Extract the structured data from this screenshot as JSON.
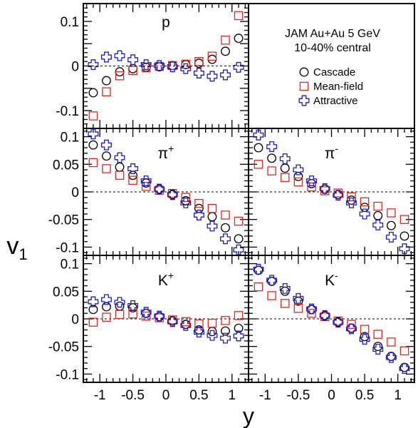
{
  "chart_data": [
    {
      "type": "scatter",
      "panel": "p",
      "label": "p",
      "label_sup": "",
      "xlabel": "y",
      "ylabel": "v1",
      "xlim": [
        -1.25,
        1.25
      ],
      "ylim": [
        -0.14,
        0.14
      ],
      "yticks": [
        "0.1",
        "0",
        "-0.1"
      ],
      "ytick_values": [
        0.1,
        0,
        -0.1
      ],
      "series": [
        {
          "name": "Cascade",
          "x": [
            -1.1,
            -0.9,
            -0.7,
            -0.5,
            -0.3,
            -0.1,
            0.1,
            0.3,
            0.5,
            0.7,
            0.9,
            1.1
          ],
          "values": [
            -0.06,
            -0.033,
            -0.013,
            -0.006,
            -0.003,
            -0.002,
            0.001,
            0.003,
            0.006,
            0.015,
            0.033,
            0.062
          ]
        },
        {
          "name": "Mean-field",
          "x": [
            -1.1,
            -0.9,
            -0.7,
            -0.5,
            -0.3,
            -0.1,
            0.1,
            0.3,
            0.5,
            0.7,
            0.9,
            1.1
          ],
          "values": [
            -0.112,
            -0.058,
            -0.022,
            -0.01,
            -0.004,
            -0.001,
            0.001,
            0.004,
            0.01,
            0.022,
            0.058,
            0.113
          ]
        },
        {
          "name": "Attractive",
          "x": [
            -1.1,
            -0.9,
            -0.7,
            -0.5,
            -0.3,
            -0.1,
            0.1,
            0.3,
            0.5,
            0.7,
            0.9,
            1.1
          ],
          "values": [
            0.003,
            0.02,
            0.023,
            0.014,
            0.003,
            0.001,
            -0.002,
            -0.006,
            -0.016,
            -0.023,
            -0.02,
            -0.003
          ]
        }
      ]
    },
    {
      "type": "scatter",
      "panel": "legend",
      "label": "",
      "label_sup": "",
      "title": "JAM Au+Au 5 GeV",
      "subtitle": "10-40% central",
      "legend": "top-right panel",
      "series_names": [
        "Cascade",
        "Mean-field",
        "Attractive"
      ]
    },
    {
      "type": "scatter",
      "panel": "pi+",
      "label": "π",
      "label_sup": "+",
      "xlabel": "y",
      "ylabel": "v1",
      "xlim": [
        -1.25,
        1.25
      ],
      "ylim": [
        -0.115,
        0.115
      ],
      "yticks": [
        "0.1",
        "0.05",
        "0",
        "-0.05",
        "-0.1"
      ],
      "ytick_values": [
        0.1,
        0.05,
        0,
        -0.05,
        -0.1
      ],
      "series": [
        {
          "name": "Cascade",
          "x": [
            -1.1,
            -0.9,
            -0.7,
            -0.5,
            -0.3,
            -0.1,
            0.1,
            0.3,
            0.5,
            0.7,
            0.9,
            1.1
          ],
          "values": [
            0.085,
            0.065,
            0.045,
            0.03,
            0.016,
            0.005,
            -0.005,
            -0.016,
            -0.03,
            -0.045,
            -0.065,
            -0.085
          ]
        },
        {
          "name": "Mean-field",
          "x": [
            -1.1,
            -0.9,
            -0.7,
            -0.5,
            -0.3,
            -0.1,
            0.1,
            0.3,
            0.5,
            0.7,
            0.9,
            1.1
          ],
          "values": [
            0.053,
            0.042,
            0.03,
            0.021,
            0.01,
            0.003,
            -0.003,
            -0.01,
            -0.021,
            -0.03,
            -0.042,
            -0.053
          ]
        },
        {
          "name": "Attractive",
          "x": [
            -1.1,
            -0.9,
            -0.7,
            -0.5,
            -0.3,
            -0.1,
            0.1,
            0.3,
            0.5,
            0.7,
            0.9,
            1.1
          ],
          "values": [
            0.105,
            0.085,
            0.062,
            0.042,
            0.02,
            0.005,
            -0.005,
            -0.02,
            -0.042,
            -0.062,
            -0.085,
            -0.105
          ]
        }
      ]
    },
    {
      "type": "scatter",
      "panel": "pi-",
      "label": "π",
      "label_sup": "-",
      "xlabel": "y",
      "ylabel": "v1",
      "xlim": [
        -1.25,
        1.25
      ],
      "ylim": [
        -0.115,
        0.115
      ],
      "yticks": [],
      "ytick_values": [
        0.1,
        0.05,
        0,
        -0.05,
        -0.1
      ],
      "series": [
        {
          "name": "Cascade",
          "x": [
            -1.1,
            -0.9,
            -0.7,
            -0.5,
            -0.3,
            -0.1,
            0.1,
            0.3,
            0.5,
            0.7,
            0.9,
            1.1
          ],
          "values": [
            0.08,
            0.061,
            0.043,
            0.028,
            0.015,
            0.005,
            -0.005,
            -0.015,
            -0.028,
            -0.043,
            -0.061,
            -0.08
          ]
        },
        {
          "name": "Mean-field",
          "x": [
            -1.1,
            -0.9,
            -0.7,
            -0.5,
            -0.3,
            -0.1,
            0.1,
            0.3,
            0.5,
            0.7,
            0.9,
            1.1
          ],
          "values": [
            0.05,
            0.038,
            0.026,
            0.018,
            0.009,
            0.002,
            -0.002,
            -0.009,
            -0.018,
            -0.026,
            -0.038,
            -0.05
          ]
        },
        {
          "name": "Attractive",
          "x": [
            -1.1,
            -0.9,
            -0.7,
            -0.5,
            -0.3,
            -0.1,
            0.1,
            0.3,
            0.5,
            0.7,
            0.9,
            1.1
          ],
          "values": [
            0.103,
            0.082,
            0.06,
            0.04,
            0.02,
            0.006,
            -0.006,
            -0.02,
            -0.04,
            -0.06,
            -0.082,
            -0.103
          ]
        }
      ]
    },
    {
      "type": "scatter",
      "panel": "K+",
      "label": "K",
      "label_sup": "+",
      "xlabel": "y",
      "ylabel": "v1",
      "xlim": [
        -1.25,
        1.25
      ],
      "ylim": [
        -0.115,
        0.115
      ],
      "yticks": [
        "0.1",
        "0.05",
        "0",
        "-0.05",
        "-0.1"
      ],
      "ytick_values": [
        0.1,
        0.05,
        0,
        -0.05,
        -0.1
      ],
      "xticks": [
        "-1",
        "-0.5",
        "0",
        "0.5",
        "1"
      ],
      "xtick_values": [
        -1,
        -0.5,
        0,
        0.5,
        1
      ],
      "series": [
        {
          "name": "Cascade",
          "x": [
            -1.1,
            -0.9,
            -0.7,
            -0.5,
            -0.3,
            -0.1,
            0.1,
            0.3,
            0.5,
            0.7,
            0.9,
            1.1
          ],
          "values": [
            0.017,
            0.022,
            0.023,
            0.02,
            0.01,
            0.004,
            -0.004,
            -0.01,
            -0.02,
            -0.023,
            -0.022,
            -0.017
          ]
        },
        {
          "name": "Mean-field",
          "x": [
            -1.1,
            -0.9,
            -0.7,
            -0.5,
            -0.3,
            -0.1,
            0.1,
            0.3,
            0.5,
            0.7,
            0.9,
            1.1
          ],
          "values": [
            -0.006,
            0.003,
            0.008,
            0.009,
            0.005,
            0.002,
            -0.002,
            -0.005,
            -0.009,
            -0.008,
            -0.003,
            0.006
          ]
        },
        {
          "name": "Attractive",
          "x": [
            -1.1,
            -0.9,
            -0.7,
            -0.5,
            -0.3,
            -0.1,
            0.1,
            0.3,
            0.5,
            0.7,
            0.9,
            1.1
          ],
          "values": [
            0.031,
            0.035,
            0.03,
            0.024,
            0.012,
            0.005,
            -0.005,
            -0.012,
            -0.024,
            -0.03,
            -0.035,
            -0.031
          ]
        }
      ]
    },
    {
      "type": "scatter",
      "panel": "K-",
      "label": "K",
      "label_sup": "-",
      "xlabel": "y",
      "ylabel": "v1",
      "xlim": [
        -1.25,
        1.25
      ],
      "ylim": [
        -0.115,
        0.115
      ],
      "yticks": [],
      "ytick_values": [
        0.1,
        0.05,
        0,
        -0.05,
        -0.1
      ],
      "xticks": [
        "-1",
        "-0.5",
        "0",
        "0.5",
        "1"
      ],
      "xtick_values": [
        -1,
        -0.5,
        0,
        0.5,
        1
      ],
      "series": [
        {
          "name": "Cascade",
          "x": [
            -1.1,
            -0.9,
            -0.7,
            -0.5,
            -0.3,
            -0.1,
            0.1,
            0.3,
            0.5,
            0.7,
            0.9,
            1.1
          ],
          "values": [
            0.088,
            0.068,
            0.05,
            0.032,
            0.017,
            0.006,
            -0.006,
            -0.017,
            -0.032,
            -0.05,
            -0.068,
            -0.088
          ]
        },
        {
          "name": "Mean-field",
          "x": [
            -1.1,
            -0.9,
            -0.7,
            -0.5,
            -0.3,
            -0.1,
            0.1,
            0.3,
            0.5,
            0.7,
            0.9,
            1.1
          ],
          "values": [
            0.058,
            0.042,
            0.028,
            0.019,
            0.01,
            0.004,
            -0.004,
            -0.01,
            -0.019,
            -0.028,
            -0.042,
            -0.058
          ]
        },
        {
          "name": "Attractive",
          "x": [
            -1.1,
            -0.9,
            -0.7,
            -0.5,
            -0.3,
            -0.1,
            0.1,
            0.3,
            0.5,
            0.7,
            0.9,
            1.1
          ],
          "values": [
            0.09,
            0.07,
            0.055,
            0.037,
            0.018,
            0.006,
            -0.006,
            -0.018,
            -0.037,
            -0.055,
            -0.07,
            -0.09
          ]
        }
      ]
    }
  ],
  "figure": {
    "xlabel": "y",
    "ylabel_main": "v",
    "ylabel_sub": "1",
    "legend_title": "JAM Au+Au 5 GeV",
    "legend_subtitle": "10-40% central",
    "series_styles": [
      {
        "name": "Cascade",
        "marker": "open-circle",
        "color": "#000000"
      },
      {
        "name": "Mean-field",
        "marker": "open-square",
        "color": "#e8231c"
      },
      {
        "name": "Attractive",
        "marker": "open-cross",
        "color": "#1a1ad8"
      }
    ]
  }
}
